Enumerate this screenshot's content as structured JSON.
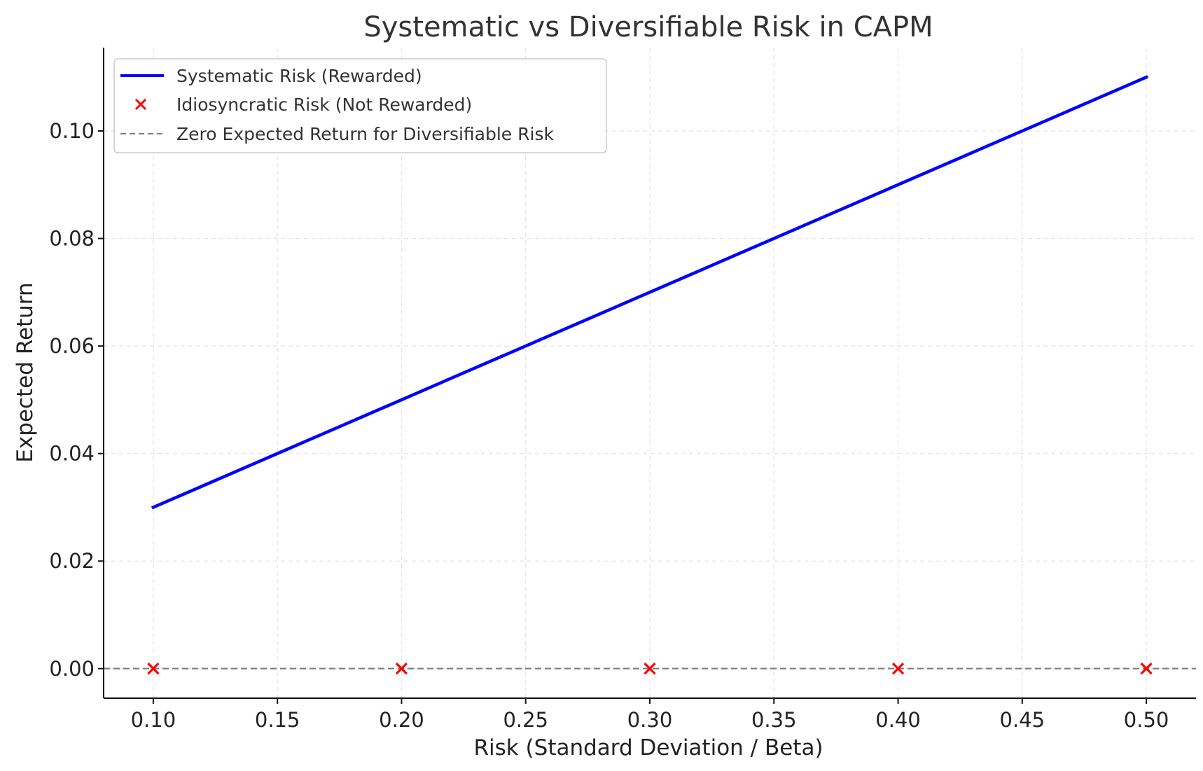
{
  "chart_data": {
    "type": "line",
    "title": "Systematic vs Diversifiable Risk in CAPM",
    "xlabel": "Risk (Standard Deviation / Beta)",
    "ylabel": "Expected Return",
    "xlim": [
      0.08,
      0.52
    ],
    "ylim": [
      -0.0055,
      0.1155
    ],
    "grid": true,
    "legend_position": "top-left",
    "x_ticks": [
      0.1,
      0.15,
      0.2,
      0.25,
      0.3,
      0.35,
      0.4,
      0.45,
      0.5
    ],
    "x_tick_labels": [
      "0.10",
      "0.15",
      "0.20",
      "0.25",
      "0.30",
      "0.35",
      "0.40",
      "0.45",
      "0.50"
    ],
    "y_ticks": [
      0.0,
      0.02,
      0.04,
      0.06,
      0.08,
      0.1
    ],
    "y_tick_labels": [
      "0.00",
      "0.02",
      "0.04",
      "0.06",
      "0.08",
      "0.10"
    ],
    "series": [
      {
        "name": "Systematic Risk (Rewarded)",
        "kind": "line",
        "color": "#0000ff",
        "x": [
          0.1,
          0.2,
          0.3,
          0.4,
          0.5
        ],
        "y": [
          0.03,
          0.05,
          0.07,
          0.09,
          0.11
        ]
      },
      {
        "name": "Idiosyncratic Risk (Not Rewarded)",
        "kind": "scatter",
        "marker": "x",
        "color": "#ff0000",
        "x": [
          0.1,
          0.2,
          0.3,
          0.4,
          0.5
        ],
        "y": [
          0,
          0,
          0,
          0,
          0
        ]
      },
      {
        "name": "Zero Expected Return for Diversifiable Risk",
        "kind": "hline",
        "style": "dashed",
        "color": "#808080",
        "y": 0
      }
    ]
  }
}
